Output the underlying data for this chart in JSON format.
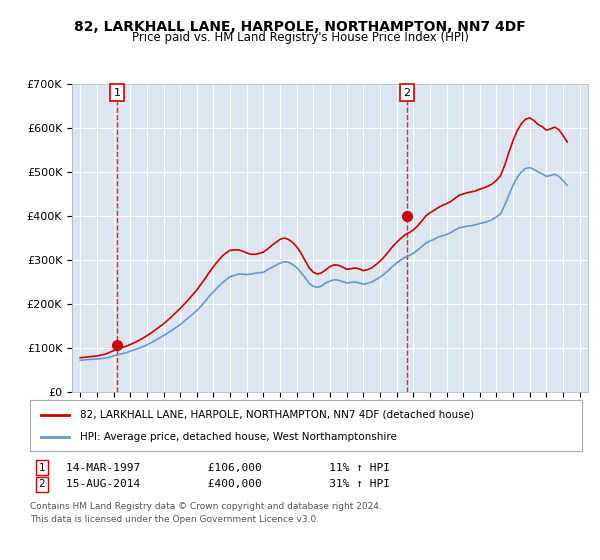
{
  "title": "82, LARKHALL LANE, HARPOLE, NORTHAMPTON, NN7 4DF",
  "subtitle": "Price paid vs. HM Land Registry's House Price Index (HPI)",
  "bg_color": "#dce6f1",
  "plot_bg_color": "#dce6f1",
  "red_line_color": "#cc0000",
  "blue_line_color": "#6699cc",
  "marker_color": "#cc0000",
  "sale1_date": 1997.21,
  "sale1_price": 106000,
  "sale2_date": 2014.62,
  "sale2_price": 400000,
  "ylim": [
    0,
    700000
  ],
  "xlim": [
    1994.5,
    2025.5
  ],
  "yticks": [
    0,
    100000,
    200000,
    300000,
    400000,
    500000,
    600000,
    700000
  ],
  "ytick_labels": [
    "£0",
    "£100K",
    "£200K",
    "£300K",
    "£400K",
    "£500K",
    "£600K",
    "£700K"
  ],
  "legend_line1": "82, LARKHALL LANE, HARPOLE, NORTHAMPTON, NN7 4DF (detached house)",
  "legend_line2": "HPI: Average price, detached house, West Northamptonshire",
  "footnote1": "1    14-MAR-1997          £106,000          11% ↑ HPI",
  "footnote2": "2    15-AUG-2014          £400,000          31% ↑ HPI",
  "footnote3": "Contains HM Land Registry data © Crown copyright and database right 2024.",
  "footnote4": "This data is licensed under the Open Government Licence v3.0.",
  "hpi_years": [
    1995,
    1995.25,
    1995.5,
    1995.75,
    1996,
    1996.25,
    1996.5,
    1996.75,
    1997,
    1997.25,
    1997.5,
    1997.75,
    1998,
    1998.25,
    1998.5,
    1998.75,
    1999,
    1999.25,
    1999.5,
    1999.75,
    2000,
    2000.25,
    2000.5,
    2000.75,
    2001,
    2001.25,
    2001.5,
    2001.75,
    2002,
    2002.25,
    2002.5,
    2002.75,
    2003,
    2003.25,
    2003.5,
    2003.75,
    2004,
    2004.25,
    2004.5,
    2004.75,
    2005,
    2005.25,
    2005.5,
    2005.75,
    2006,
    2006.25,
    2006.5,
    2006.75,
    2007,
    2007.25,
    2007.5,
    2007.75,
    2008,
    2008.25,
    2008.5,
    2008.75,
    2009,
    2009.25,
    2009.5,
    2009.75,
    2010,
    2010.25,
    2010.5,
    2010.75,
    2011,
    2011.25,
    2011.5,
    2011.75,
    2012,
    2012.25,
    2012.5,
    2012.75,
    2013,
    2013.25,
    2013.5,
    2013.75,
    2014,
    2014.25,
    2014.5,
    2014.75,
    2015,
    2015.25,
    2015.5,
    2015.75,
    2016,
    2016.25,
    2016.5,
    2016.75,
    2017,
    2017.25,
    2017.5,
    2017.75,
    2018,
    2018.25,
    2018.5,
    2018.75,
    2019,
    2019.25,
    2019.5,
    2019.75,
    2020,
    2020.25,
    2020.5,
    2020.75,
    2021,
    2021.25,
    2021.5,
    2021.75,
    2022,
    2022.25,
    2022.5,
    2022.75,
    2023,
    2023.25,
    2023.5,
    2023.75,
    2024,
    2024.25
  ],
  "hpi_values": [
    72000,
    73000,
    74000,
    74500,
    75000,
    76000,
    77000,
    79000,
    82000,
    85000,
    87000,
    89000,
    93000,
    96000,
    99000,
    103000,
    107000,
    112000,
    117000,
    123000,
    128000,
    134000,
    140000,
    147000,
    153000,
    161000,
    169000,
    177000,
    185000,
    195000,
    206000,
    218000,
    228000,
    238000,
    247000,
    255000,
    262000,
    265000,
    268000,
    268000,
    267000,
    268000,
    270000,
    271000,
    272000,
    278000,
    283000,
    288000,
    293000,
    296000,
    295000,
    290000,
    283000,
    272000,
    260000,
    247000,
    240000,
    238000,
    241000,
    248000,
    252000,
    255000,
    254000,
    251000,
    248000,
    249000,
    250000,
    248000,
    245000,
    247000,
    250000,
    255000,
    261000,
    268000,
    276000,
    285000,
    293000,
    300000,
    306000,
    310000,
    315000,
    322000,
    330000,
    338000,
    343000,
    347000,
    352000,
    355000,
    358000,
    362000,
    368000,
    373000,
    375000,
    377000,
    378000,
    380000,
    383000,
    385000,
    388000,
    392000,
    398000,
    405000,
    425000,
    448000,
    470000,
    488000,
    500000,
    508000,
    510000,
    506000,
    500000,
    496000,
    490000,
    492000,
    495000,
    490000,
    480000,
    470000
  ],
  "red_years": [
    1995,
    1995.25,
    1995.5,
    1995.75,
    1996,
    1996.25,
    1996.5,
    1996.75,
    1997,
    1997.25,
    1997.5,
    1997.75,
    1998,
    1998.25,
    1998.5,
    1998.75,
    1999,
    1999.25,
    1999.5,
    1999.75,
    2000,
    2000.25,
    2000.5,
    2000.75,
    2001,
    2001.25,
    2001.5,
    2001.75,
    2002,
    2002.25,
    2002.5,
    2002.75,
    2003,
    2003.25,
    2003.5,
    2003.75,
    2004,
    2004.25,
    2004.5,
    2004.75,
    2005,
    2005.25,
    2005.5,
    2005.75,
    2006,
    2006.25,
    2006.5,
    2006.75,
    2007,
    2007.25,
    2007.5,
    2007.75,
    2008,
    2008.25,
    2008.5,
    2008.75,
    2009,
    2009.25,
    2009.5,
    2009.75,
    2010,
    2010.25,
    2010.5,
    2010.75,
    2011,
    2011.25,
    2011.5,
    2011.75,
    2012,
    2012.25,
    2012.5,
    2012.75,
    2013,
    2013.25,
    2013.5,
    2013.75,
    2014,
    2014.25,
    2014.5,
    2014.75,
    2015,
    2015.25,
    2015.5,
    2015.75,
    2016,
    2016.25,
    2016.5,
    2016.75,
    2017,
    2017.25,
    2017.5,
    2017.75,
    2018,
    2018.25,
    2018.5,
    2018.75,
    2019,
    2019.25,
    2019.5,
    2019.75,
    2020,
    2020.25,
    2020.5,
    2020.75,
    2021,
    2021.25,
    2021.5,
    2021.75,
    2022,
    2022.25,
    2022.5,
    2022.75,
    2023,
    2023.25,
    2023.5,
    2023.75,
    2024,
    2024.25
  ],
  "red_values": [
    78000,
    79000,
    80000,
    81000,
    82000,
    84000,
    86000,
    90000,
    94000,
    98000,
    101000,
    104000,
    108000,
    112000,
    117000,
    122000,
    128000,
    134000,
    141000,
    148000,
    155000,
    163000,
    172000,
    181000,
    190000,
    200000,
    210000,
    221000,
    232000,
    245000,
    258000,
    272000,
    285000,
    297000,
    308000,
    316000,
    322000,
    323000,
    323000,
    320000,
    316000,
    313000,
    313000,
    315000,
    318000,
    325000,
    333000,
    340000,
    347000,
    350000,
    347000,
    340000,
    330000,
    316000,
    299000,
    282000,
    272000,
    268000,
    271000,
    278000,
    285000,
    289000,
    288000,
    284000,
    279000,
    280000,
    282000,
    280000,
    276000,
    278000,
    282000,
    289000,
    297000,
    307000,
    318000,
    330000,
    340000,
    349000,
    357000,
    362000,
    368000,
    377000,
    388000,
    400000,
    407000,
    413000,
    419000,
    424000,
    428000,
    433000,
    440000,
    447000,
    450000,
    453000,
    455000,
    457000,
    461000,
    464000,
    468000,
    473000,
    481000,
    492000,
    516000,
    545000,
    572000,
    594000,
    610000,
    620000,
    623000,
    617000,
    608000,
    603000,
    595000,
    598000,
    602000,
    596000,
    583000,
    568000
  ]
}
